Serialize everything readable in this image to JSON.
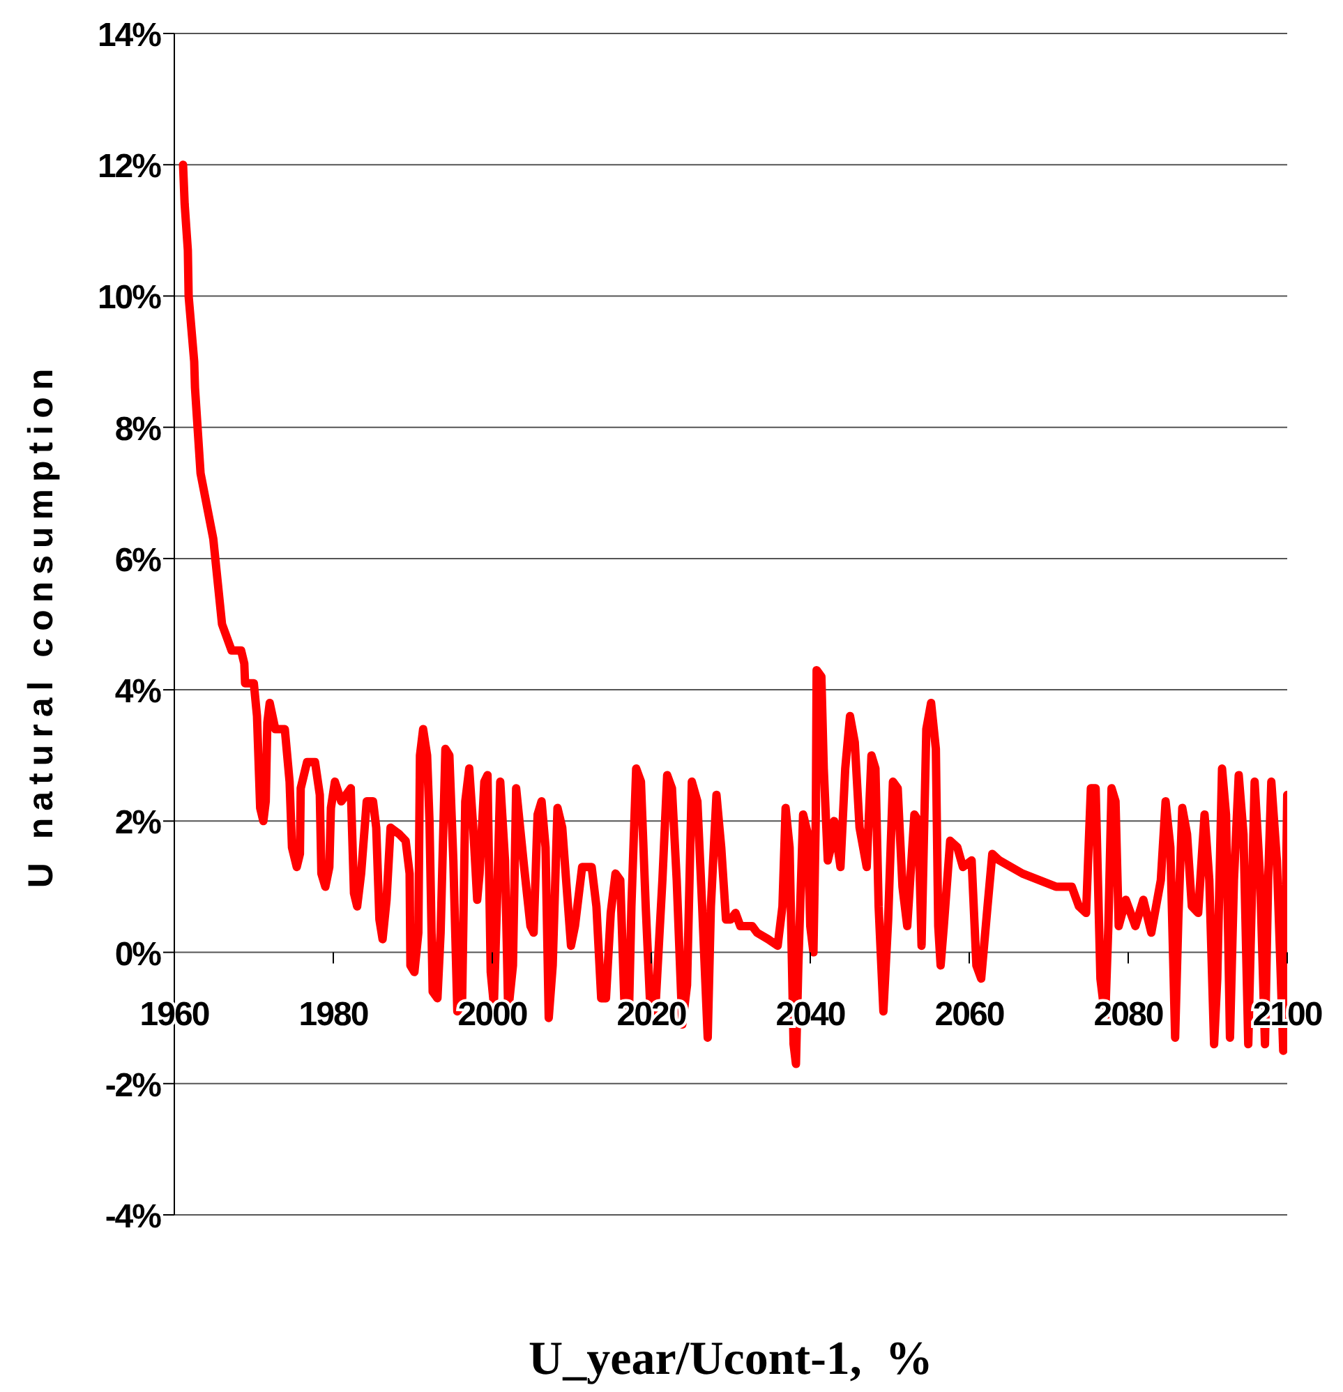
{
  "chart_data": {
    "type": "line",
    "xlabel": "U_year/Ucont-1,  %",
    "ylabel": "U natural consumption",
    "x": [
      1961.1,
      1961.3,
      1961.7,
      1961.8,
      1962.5,
      1962.6,
      1963.3,
      1964.9,
      1966.0,
      1967.2,
      1968.4,
      1968.8,
      1968.9,
      1970.0,
      1970.4,
      1970.8,
      1971.2,
      1971.5,
      1971.7,
      1972.0,
      1972.7,
      1973.9,
      1974.5,
      1974.8,
      1975.4,
      1975.8,
      1975.9,
      1976.7,
      1977.7,
      1978.3,
      1978.5,
      1979.0,
      1979.5,
      1979.7,
      1980.2,
      1981.0,
      1982.2,
      1982.6,
      1983.0,
      1983.5,
      1984.2,
      1985.0,
      1985.4,
      1985.8,
      1986.2,
      1986.7,
      1987.2,
      1988.3,
      1989.1,
      1989.6,
      1989.7,
      1990.2,
      1990.7,
      1990.9,
      1991.3,
      1991.8,
      1992.1,
      1992.5,
      1993.1,
      1993.5,
      1994.1,
      1994.6,
      1995.1,
      1995.6,
      1996.2,
      1996.6,
      1997.1,
      1997.6,
      1998.1,
      1998.4,
      1999.0,
      1999.4,
      1999.8,
      2000.2,
      2000.6,
      2001.0,
      2001.6,
      2002.0,
      2002.6,
      2003.0,
      2004.0,
      2004.8,
      2005.2,
      2005.7,
      2006.2,
      2006.7,
      2007.1,
      2007.6,
      2008.2,
      2008.8,
      2009.9,
      2010.4,
      2011.3,
      2012.5,
      2013.1,
      2013.7,
      2014.3,
      2014.9,
      2015.5,
      2016.1,
      2016.6,
      2017.2,
      2017.5,
      2018.1,
      2018.7,
      2019.3,
      2019.9,
      2020.5,
      2021.4,
      2022.0,
      2022.6,
      2023.2,
      2023.9,
      2024.5,
      2025.1,
      2025.8,
      2026.4,
      2027.1,
      2027.5,
      2028.2,
      2028.8,
      2029.4,
      2030.0,
      2030.6,
      2031.2,
      2032.7,
      2033.3,
      2034.7,
      2035.9,
      2036.5,
      2036.9,
      2037.4,
      2037.9,
      2038.2,
      2038.5,
      2039.1,
      2039.7,
      2040.0,
      2040.4,
      2040.7,
      2040.8,
      2041.4,
      2041.7,
      2042.2,
      2042.6,
      2043.0,
      2043.8,
      2044.4,
      2045.0,
      2045.6,
      2046.2,
      2047.1,
      2047.7,
      2048.2,
      2048.6,
      2049.2,
      2049.8,
      2050.4,
      2051.0,
      2051.6,
      2052.2,
      2053.1,
      2053.6,
      2054.0,
      2054.6,
      2055.2,
      2055.8,
      2056.1,
      2056.4,
      2056.8,
      2057.6,
      2058.5,
      2059.2,
      2060.3,
      2060.9,
      2061.5,
      2062.3,
      2062.9,
      2063.8,
      2066.7,
      2070.9,
      2072.9,
      2073.8,
      2074.7,
      2075.3,
      2075.9,
      2076.5,
      2077.1,
      2077.5,
      2077.9,
      2078.4,
      2078.8,
      2079.7,
      2080.9,
      2081.9,
      2082.9,
      2084.1,
      2084.7,
      2085.3,
      2085.9,
      2086.3,
      2086.8,
      2087.4,
      2088.0,
      2088.8,
      2089.6,
      2090.2,
      2090.8,
      2091.2,
      2091.8,
      2092.3,
      2092.8,
      2093.3,
      2093.9,
      2094.5,
      2095.1,
      2095.6,
      2095.9,
      2096.6,
      2097.2,
      2097.6,
      2098.0,
      2098.7,
      2099.2,
      2099.5,
      2099.7,
      2100.0
    ],
    "series": [
      {
        "color": "#ff0000",
        "values": [
          12.0,
          11.4,
          10.7,
          10.0,
          9.0,
          8.6,
          7.3,
          6.3,
          5.0,
          4.6,
          4.6,
          4.4,
          4.1,
          4.1,
          3.6,
          2.2,
          2.0,
          2.3,
          3.5,
          3.8,
          3.4,
          3.4,
          2.6,
          1.6,
          1.3,
          1.5,
          2.5,
          2.9,
          2.9,
          2.4,
          1.2,
          1.0,
          1.3,
          2.2,
          2.6,
          2.3,
          2.5,
          0.9,
          0.7,
          1.2,
          2.3,
          2.3,
          1.9,
          0.5,
          0.2,
          0.8,
          1.9,
          1.8,
          1.7,
          1.2,
          -0.2,
          -0.3,
          0.3,
          3.0,
          3.4,
          3.0,
          2.0,
          -0.6,
          -0.7,
          0.3,
          3.1,
          3.0,
          1.4,
          -0.9,
          -0.8,
          2.3,
          2.8,
          1.9,
          0.8,
          1.2,
          2.6,
          2.7,
          -0.3,
          -0.8,
          0.8,
          2.6,
          1.4,
          -0.9,
          -0.2,
          2.5,
          1.3,
          0.4,
          0.3,
          2.1,
          2.3,
          1.6,
          -1.0,
          -0.2,
          2.2,
          1.9,
          0.1,
          0.4,
          1.3,
          1.3,
          0.7,
          -0.7,
          -0.7,
          0.6,
          1.2,
          1.1,
          -0.7,
          -0.9,
          0.7,
          2.8,
          2.6,
          0.7,
          -0.9,
          -0.9,
          1.1,
          2.7,
          2.5,
          1.1,
          -1.1,
          -0.5,
          2.6,
          2.3,
          0.7,
          -1.3,
          0.7,
          2.4,
          1.6,
          0.5,
          0.5,
          0.6,
          0.4,
          0.4,
          0.3,
          0.2,
          0.1,
          0.7,
          2.2,
          1.6,
          -1.4,
          -1.7,
          -0.2,
          2.1,
          1.8,
          0.4,
          0.0,
          2.1,
          4.3,
          4.2,
          2.8,
          1.4,
          1.6,
          2.0,
          1.3,
          2.8,
          3.6,
          3.2,
          1.9,
          1.3,
          3.0,
          2.8,
          0.7,
          -0.9,
          0.5,
          2.6,
          2.5,
          1.0,
          0.4,
          2.1,
          2.0,
          0.1,
          3.4,
          3.8,
          3.1,
          0.4,
          -0.2,
          0.4,
          1.7,
          1.6,
          1.3,
          1.4,
          -0.2,
          -0.4,
          0.7,
          1.5,
          1.4,
          1.2,
          1.0,
          1.0,
          0.7,
          0.6,
          2.5,
          2.5,
          -0.4,
          -1.0,
          0.4,
          2.5,
          2.3,
          0.4,
          0.8,
          0.4,
          0.8,
          0.3,
          1.1,
          2.3,
          1.6,
          -1.3,
          0.5,
          2.2,
          1.8,
          0.7,
          0.6,
          2.1,
          1.1,
          -1.4,
          -0.4,
          2.8,
          2.1,
          -1.3,
          1.1,
          2.7,
          1.8,
          -1.4,
          1.1,
          2.6,
          1.1,
          -1.4,
          1.1,
          2.6,
          1.4,
          -0.4,
          -1.5,
          -0.4,
          2.4
        ]
      }
    ],
    "xlim": [
      1960,
      2100
    ],
    "xticks": [
      1960,
      1980,
      2000,
      2020,
      2040,
      2060,
      2080,
      2100
    ],
    "ylim": [
      -4,
      14
    ],
    "yticks": [
      {
        "value": -4,
        "label": "-4%"
      },
      {
        "value": -2,
        "label": "-2%"
      },
      {
        "value": 0,
        "label": "0%"
      },
      {
        "value": 2,
        "label": "2%"
      },
      {
        "value": 4,
        "label": "4%"
      },
      {
        "value": 6,
        "label": "6%"
      },
      {
        "value": 8,
        "label": "8%"
      },
      {
        "value": 10,
        "label": "10%"
      },
      {
        "value": 12,
        "label": "12%"
      },
      {
        "value": 14,
        "label": "14%"
      }
    ],
    "grid": "y",
    "marker": "none",
    "line_style": "solid"
  }
}
